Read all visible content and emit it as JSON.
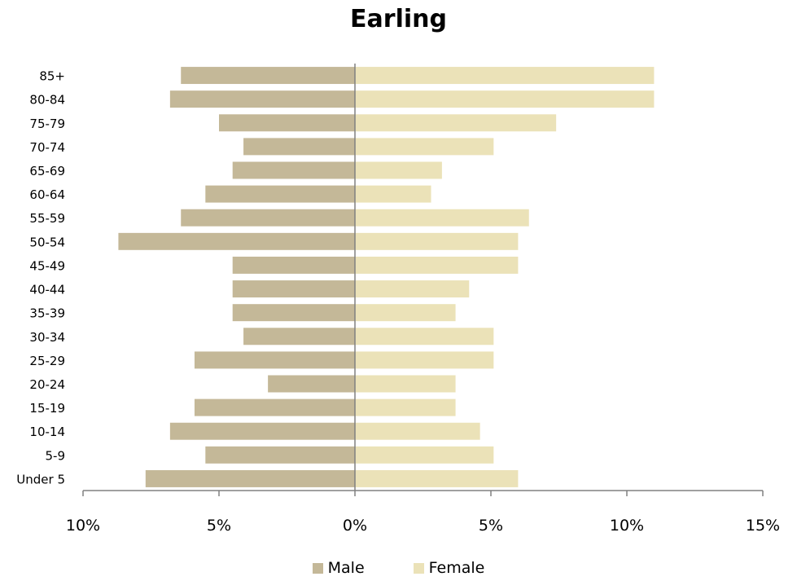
{
  "chart_data": {
    "type": "bar",
    "orientation": "horizontal",
    "title": "Earling",
    "xlabel": "",
    "ylabel": "",
    "xlim": [
      -10,
      15
    ],
    "x_ticks": [
      -10,
      -5,
      0,
      5,
      10,
      15
    ],
    "x_tick_labels": [
      "10%",
      "5%",
      "0%",
      "5%",
      "10%",
      "15%"
    ],
    "categories": [
      "85+",
      "80-84",
      "75-79",
      "70-74",
      "65-69",
      "60-64",
      "55-59",
      "50-54",
      "45-49",
      "40-44",
      "35-39",
      "30-34",
      "25-29",
      "20-24",
      "15-19",
      "10-14",
      "5-9",
      "Under 5"
    ],
    "series": [
      {
        "name": "Male",
        "color": "#c4b898",
        "values": [
          -6.4,
          -6.8,
          -5.0,
          -4.1,
          -4.5,
          -5.5,
          -6.4,
          -8.7,
          -4.5,
          -4.5,
          -4.5,
          -4.1,
          -5.9,
          -3.2,
          -5.9,
          -6.8,
          -5.5,
          -7.7
        ]
      },
      {
        "name": "Female",
        "color": "#ebe2b8",
        "values": [
          11.0,
          11.0,
          7.4,
          5.1,
          3.2,
          2.8,
          6.4,
          6.0,
          6.0,
          4.2,
          3.7,
          5.1,
          5.1,
          3.7,
          3.7,
          4.6,
          5.1,
          6.0
        ]
      }
    ],
    "grid": false,
    "legend_position": "bottom"
  }
}
